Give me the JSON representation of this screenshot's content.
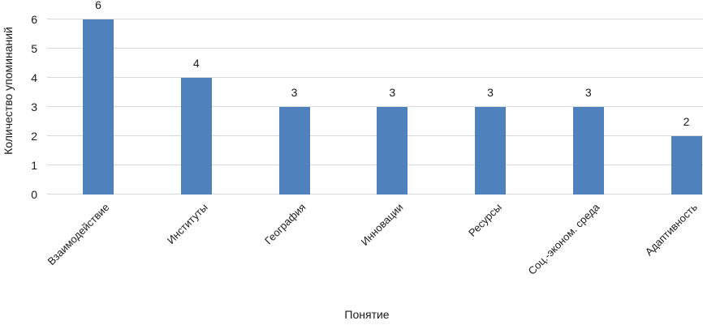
{
  "chart_data": {
    "type": "bar",
    "title": "",
    "categories": [
      "Взаимодействие",
      "Институты",
      "География",
      "Инновации",
      "Ресурсы",
      "Соц.-эконом. среда",
      "Адаптивность"
    ],
    "values": [
      6,
      4,
      3,
      3,
      3,
      3,
      2
    ],
    "data_labels": [
      "6",
      "4",
      "3",
      "3",
      "3",
      "3",
      "2"
    ],
    "xlabel": "Понятие",
    "ylabel": "Количество упоминаний",
    "ylim": [
      0,
      6
    ],
    "yticks": [
      0,
      1,
      2,
      3,
      4,
      5,
      6
    ],
    "grid": "horizontal",
    "legend": "none",
    "bar_color": "#4f81bd",
    "gridline_color": "#d9d9d9",
    "axis_line_color": "#d9d9d9",
    "text_color": "#1a1a1a"
  }
}
